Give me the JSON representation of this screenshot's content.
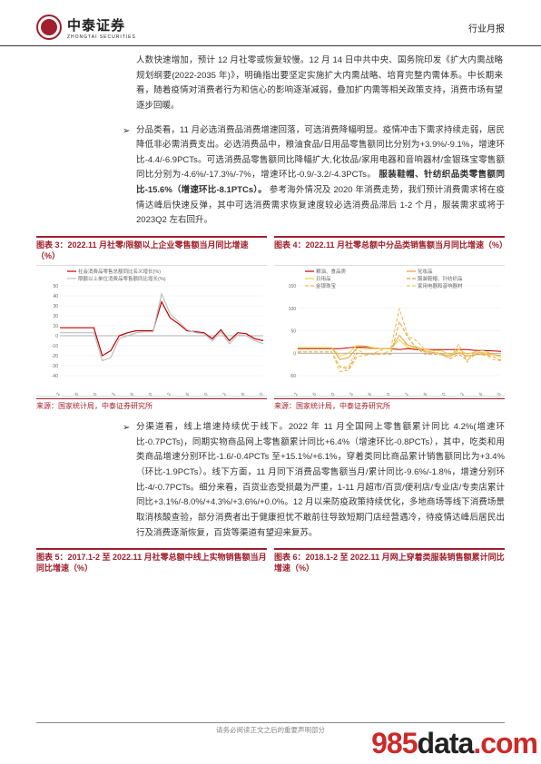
{
  "header": {
    "logo_cn": "中泰证券",
    "logo_en": "ZHONGTAI SECURITIES",
    "report_type": "行业月报"
  },
  "para1": "人数快速增加，预计 12 月社零或恢复较慢。12 月 14 日中共中央、国务院印发《扩大内需战略规划纲要(2022-2035 年)》，明确指出要坚定实施扩大内需战略、培育完整内需体系。中长期来看，随着疫情对消费者行为和信心的影响逐渐减弱，叠加扩内需等相关政策支持，消费市场有望逐步回暖。",
  "bullet2": {
    "marker": "➢",
    "text_a": "分品类看，11 月必选消费品消费增速回落，可选消费降幅明显。疫情冲击下需求持续走弱，居民降低非必需消费支出。必选消费品中，粮油食品/日用品零售额同比分别为+3.9%/-9.1%，增速环比-4.4/-6.9PCTs。可选消费品零售额同比降幅扩大,化妆品/家用电器和音响器材/金银珠宝零售额同比分别为-4.6%/-17.3%/-7%，增速环比-0.9/-3.2/-4.3PCTs。",
    "bold": "服装鞋帽、针纺织品类零售额同比-15.6%（增速环比-8.1PTCs）。",
    "text_b": "参考海外情况及 2020 年消费走势，我们预计消费需求将在疫情达峰后快速反弹，其中可选消费需求恢复速度较必选消费品滞后 1-2 个月，服装需求或将于 2023Q2 左右回升。"
  },
  "chart3": {
    "title": "图表 3：2022.11 月社零/限额以上企业零售额当月同比增速（%）",
    "source": "来源：国家统计局，中泰证券研究所",
    "legend": [
      "社会消费品零售总额同比名义增长(%)",
      "限额以上单位消费品零售额同比增长(%)"
    ],
    "colors": [
      "#c00000",
      "#bfbfbf"
    ],
    "ylim": [
      -40,
      50
    ],
    "ytick_step": 10,
    "x_labels": [
      "2019.2",
      "2019.6",
      "2019.10",
      "2020.2",
      "2020.6",
      "2020.10",
      "2021.2",
      "2021.6",
      "2021.10",
      "2022.2",
      "2022.6",
      "2022.10"
    ],
    "series1": [
      8,
      8,
      8,
      8,
      8,
      -20,
      -15,
      0,
      3,
      5,
      5,
      5,
      34,
      18,
      12,
      5,
      4,
      3,
      -3,
      6,
      -5,
      3,
      2,
      -3,
      -5
    ],
    "series2": [
      3,
      3,
      3,
      3,
      3,
      -25,
      -22,
      -3,
      0,
      3,
      4,
      4,
      42,
      22,
      14,
      6,
      3,
      2,
      -5,
      4,
      -8,
      1,
      0,
      -5,
      -8
    ],
    "background_color": "#ffffff",
    "grid_color": "#eeeeee",
    "line_width": 1.2
  },
  "chart4": {
    "title": "图表 4：2022.11 月社零总额中分品类销售额当月同比增速（%）",
    "source": "来源：国家统计局，中泰证券研究所",
    "legend": [
      "粮油、食品类",
      "化妆品",
      "日用品",
      "服装鞋帽、针纺织品",
      "金银珠宝",
      "家用电器和音响器材"
    ],
    "colors": [
      "#c00000",
      "#e89c3c",
      "#e8d23c",
      "#e89c3c",
      "#f2b84d",
      "#e6c96b"
    ],
    "dash": [
      "",
      "",
      "",
      "4 2",
      "4 2",
      "4 2"
    ],
    "ylim": [
      -50,
      150
    ],
    "ytick_step": 50,
    "x_labels": [
      "2019.2",
      "2019.6",
      "2019.10",
      "2020.2",
      "2020.6",
      "2020.10",
      "2021.2",
      "2021.6",
      "2021.10",
      "2022.2",
      "2022.6",
      "2022.10"
    ],
    "series": [
      [
        10,
        10,
        10,
        10,
        10,
        10,
        12,
        14,
        14,
        12,
        10,
        10,
        8,
        10,
        8,
        8,
        8,
        8,
        8,
        8,
        8,
        6,
        6,
        5,
        4
      ],
      [
        12,
        12,
        12,
        12,
        12,
        -14,
        -10,
        12,
        10,
        10,
        10,
        10,
        40,
        18,
        14,
        3,
        2,
        -2,
        -6,
        1,
        -6,
        -3,
        -3,
        -3,
        -5
      ],
      [
        12,
        12,
        12,
        12,
        12,
        -6,
        0,
        18,
        16,
        12,
        10,
        10,
        30,
        12,
        14,
        8,
        6,
        5,
        -3,
        8,
        -2,
        3,
        1,
        -3,
        -9
      ],
      [
        2,
        3,
        3,
        3,
        3,
        -31,
        -35,
        0,
        -2,
        -3,
        -2,
        -2,
        70,
        35,
        12,
        -2,
        -2,
        -3,
        -12,
        -2,
        -16,
        -2,
        -4,
        -7,
        -16
      ],
      [
        4,
        3,
        3,
        3,
        3,
        -41,
        -38,
        -8,
        -5,
        0,
        8,
        12,
        99,
        38,
        28,
        8,
        6,
        -4,
        -10,
        20,
        -20,
        8,
        5,
        -2,
        -7
      ],
      [
        3,
        3,
        3,
        3,
        3,
        -30,
        -30,
        10,
        -3,
        -2,
        0,
        5,
        40,
        14,
        10,
        6,
        2,
        -2,
        -5,
        5,
        -10,
        2,
        -1,
        -14,
        -17
      ]
    ],
    "background_color": "#ffffff",
    "grid_color": "#eeeeee",
    "line_width": 1
  },
  "bullet3": {
    "marker": "➢",
    "text": "分渠道看，线上增速持续优于线下。2022 年 11 月全国网上零售额累计同比 4.2%(增速环比-0.7PCTs)，同期实物商品网上零售额累计同比+6.4%（增速环比-0.8PCTs），其中，吃类和用类商品增速分别环比-1.6/-0.4PCTs 至+15.1%/+6.1%，穿着类同比商品累计销售额同比为+3.4%（环比-1.9PCTs）。线下方面，11 月同下消费品零售额当月/累计同比-9.6%/-1.8%，增速分别环比-4/-0.7PCTs。细分来看，百货业态受损最为严重，1-11 月超市/百货/便利店/专业店/专卖店累计同比+3.1%/-8.0%/+4.3%/+3.6%/+0.0%。12 月以来防疫政策持续优化，多地商场等线下消费场景取消核酸查验，部分消费者出于健康担忧不敢前往导致短期门店经营遇冷，待疫情达峰后居民出行及消费逐渐恢复，百货等渠道有望迎来复苏。"
  },
  "chart5": {
    "title": "图表 5：2017.1-2 至 2022.11 月社零总额中线上实物销售额当月同比增速（%）"
  },
  "chart6": {
    "title": "图表 6：2018.1-2 至 2022.11 月网上穿着类服装销售额累计同比增速（%）"
  },
  "footer": "请务必阅读正文之后的重要声明部分",
  "watermark_a": "985",
  "watermark_b": "data",
  "watermark_c": ".com"
}
